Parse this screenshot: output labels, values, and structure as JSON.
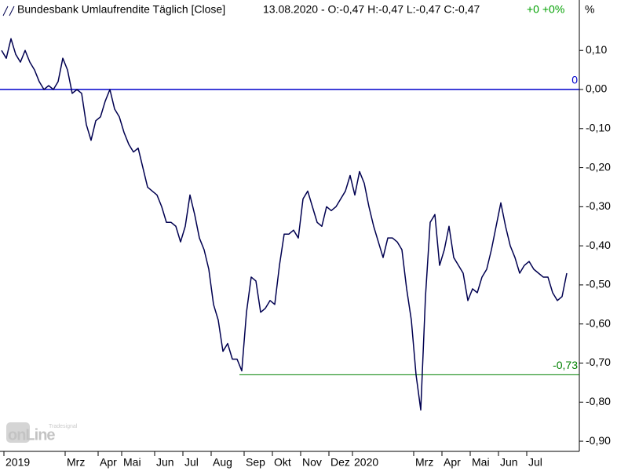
{
  "chart_data": {
    "type": "line",
    "title": "Bundesbank Umlaufrendite Täglich [Close]",
    "info": "13.08.2020 - O:-0,47 H:-0,47 L:-0,47 C:-0,47",
    "change": "+0 +0%",
    "unit": "%",
    "logo": [
      "Tradesignal",
      "onLine"
    ],
    "color": "#000050",
    "categories": [
      "2019",
      null,
      null,
      null,
      null,
      null,
      null,
      null,
      null,
      null,
      null,
      null,
      null,
      "Mrz",
      null,
      null,
      null,
      null,
      null,
      null,
      "Apr",
      null,
      null,
      null,
      null,
      "Mai",
      null,
      null,
      null,
      null,
      null,
      null,
      "Jun",
      null,
      null,
      null,
      null,
      null,
      "Jul",
      null,
      null,
      null,
      null,
      null,
      "Aug",
      null,
      null,
      null,
      null,
      null,
      null,
      "Sep",
      null,
      null,
      null,
      null,
      null,
      "Okt",
      null,
      null,
      null,
      null,
      null,
      "Nov",
      null,
      null,
      null,
      null,
      null,
      "Dez",
      null,
      null,
      null,
      null,
      "2020",
      null,
      null,
      null,
      null,
      null,
      null,
      null,
      null,
      null,
      null,
      null,
      null,
      "Mrz",
      null,
      null,
      null,
      null,
      null,
      "Apr",
      null,
      null,
      null,
      null,
      null,
      "Mai",
      null,
      null,
      null,
      null,
      null,
      "Jun",
      null,
      null,
      null,
      null,
      null,
      "Jul",
      null,
      null,
      null,
      null,
      null,
      null,
      null,
      null,
      null
    ],
    "values": [
      0.1,
      0.08,
      0.13,
      0.09,
      0.07,
      0.1,
      0.07,
      0.05,
      0.02,
      0.0,
      0.01,
      0.0,
      0.02,
      0.08,
      0.05,
      -0.01,
      0.0,
      -0.01,
      -0.09,
      -0.13,
      -0.08,
      -0.07,
      -0.03,
      0.0,
      -0.05,
      -0.07,
      -0.11,
      -0.14,
      -0.16,
      -0.15,
      -0.2,
      -0.25,
      -0.26,
      -0.27,
      -0.3,
      -0.34,
      -0.34,
      -0.35,
      -0.39,
      -0.35,
      -0.27,
      -0.32,
      -0.38,
      -0.41,
      -0.46,
      -0.55,
      -0.59,
      -0.67,
      -0.65,
      -0.69,
      -0.69,
      -0.72,
      -0.57,
      -0.48,
      -0.49,
      -0.57,
      -0.56,
      -0.54,
      -0.55,
      -0.45,
      -0.37,
      -0.37,
      -0.36,
      -0.38,
      -0.28,
      -0.26,
      -0.3,
      -0.34,
      -0.35,
      -0.3,
      -0.31,
      -0.3,
      -0.28,
      -0.26,
      -0.22,
      -0.27,
      -0.21,
      -0.24,
      -0.3,
      -0.35,
      -0.39,
      -0.43,
      -0.38,
      -0.38,
      -0.39,
      -0.41,
      -0.51,
      -0.59,
      -0.73,
      -0.82,
      -0.53,
      -0.34,
      -0.32,
      -0.45,
      -0.41,
      -0.35,
      -0.43,
      -0.45,
      -0.47,
      -0.54,
      -0.51,
      -0.52,
      -0.48,
      -0.46,
      -0.41,
      -0.35,
      -0.29,
      -0.35,
      -0.4,
      -0.43,
      -0.47,
      -0.45,
      -0.44,
      -0.46,
      -0.47,
      -0.48,
      -0.48,
      -0.52,
      -0.54,
      -0.53,
      -0.47
    ],
    "ylim": [
      -0.926,
      0.229
    ],
    "yticks": [
      {
        "value": 0.1,
        "label": "0,10"
      },
      {
        "value": 0,
        "label": "0,00"
      },
      {
        "value": -0.1,
        "label": "-0,10"
      },
      {
        "value": -0.2,
        "label": "-0,20"
      },
      {
        "value": -0.3,
        "label": "-0,30"
      },
      {
        "value": -0.4,
        "label": "-0,40"
      },
      {
        "value": -0.5,
        "label": "-0,50"
      },
      {
        "value": -0.6,
        "label": "-0,60"
      },
      {
        "value": -0.7,
        "label": "-0,70"
      },
      {
        "value": -0.8,
        "label": "-0,80"
      },
      {
        "value": -0.9,
        "label": "-0,90"
      }
    ],
    "hlines": [
      {
        "value": 0,
        "label": "0",
        "color": "#0000cc"
      },
      {
        "value": -0.73,
        "label": "-0,73",
        "color": "#008000"
      }
    ]
  }
}
